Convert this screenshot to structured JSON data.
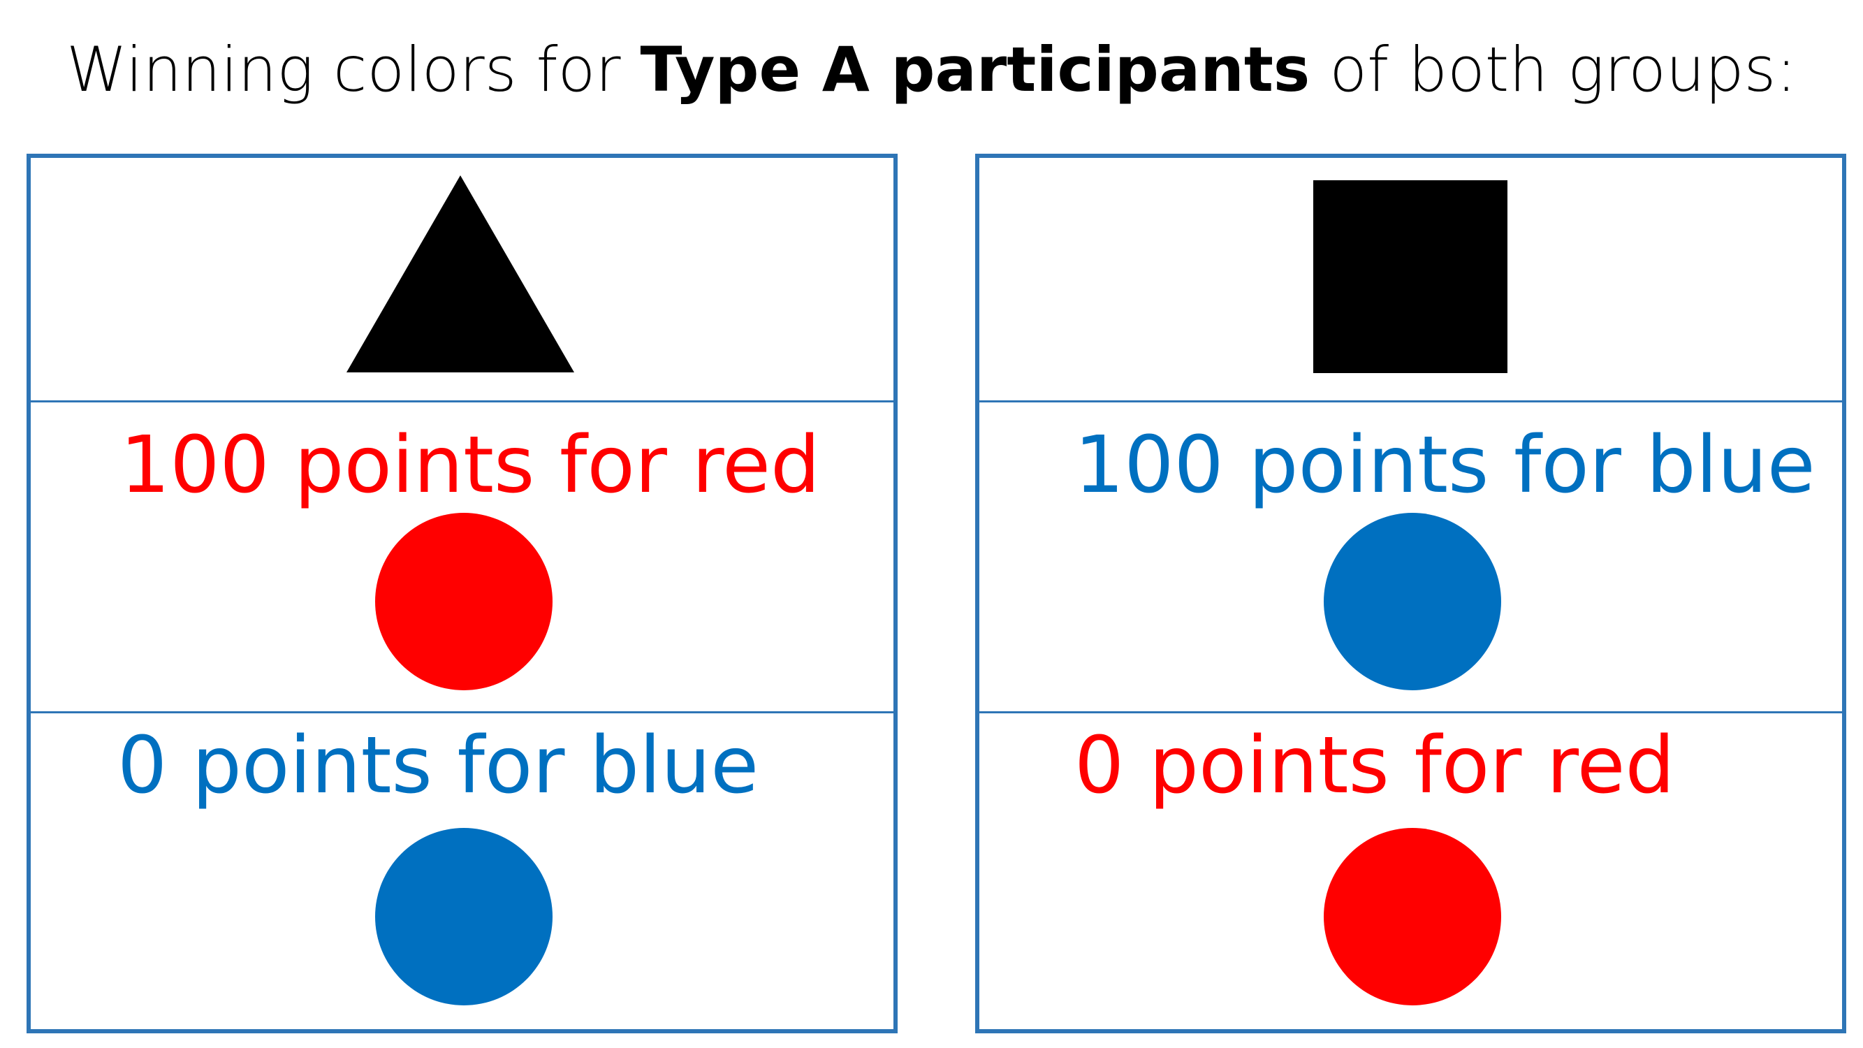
{
  "title": {
    "prefix": "Winning colors for ",
    "emphasis": "Type A participants",
    "suffix": " of both groups:"
  },
  "colors": {
    "red": "#ff0000",
    "blue": "#0070c0",
    "border": "#2e75b6",
    "shape": "#000000"
  },
  "panels": [
    {
      "shape": "triangle",
      "winner_label": "100 points for red",
      "winner_color": "red",
      "loser_label": "0 points for blue",
      "loser_color": "blue"
    },
    {
      "shape": "square",
      "winner_label": "100 points for blue",
      "winner_color": "blue",
      "loser_label": "0 points for red",
      "loser_color": "red"
    }
  ]
}
